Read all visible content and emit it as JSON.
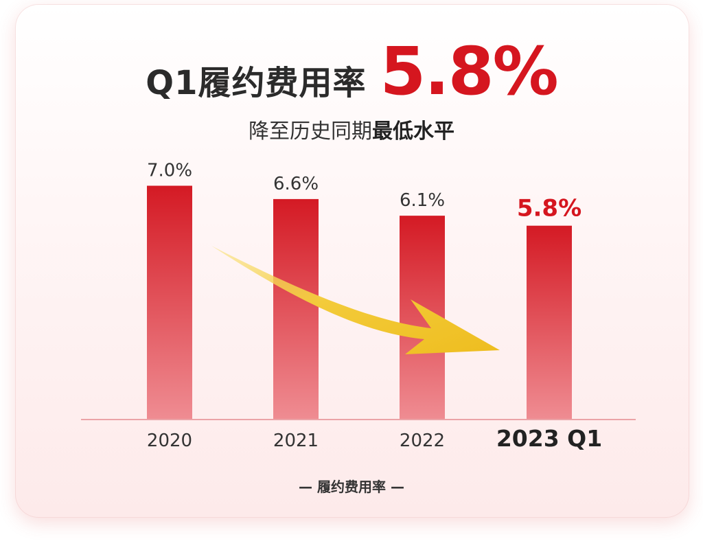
{
  "headline": {
    "prefix": "Q1履约费用率",
    "value": "5.8%"
  },
  "subtitle": {
    "normal": "降至历史同期",
    "bold": "最低水平"
  },
  "legend_caption": "— 履约费用率 —",
  "colors": {
    "accent": "#d5161f",
    "bar_top": "#d41a24",
    "bar_bottom": "#ef8c92",
    "arrow": "#f2c531",
    "baseline": "#e58a8f",
    "text": "#333333"
  },
  "chart_data": {
    "type": "bar",
    "categories": [
      "2020",
      "2021",
      "2022",
      "2023 Q1"
    ],
    "values": [
      7.0,
      6.6,
      6.1,
      5.8
    ],
    "value_labels": [
      "7.0%",
      "6.6%",
      "6.1%",
      "5.8%"
    ],
    "highlight_index": 3,
    "title": "Q1履约费用率 5.8%",
    "xlabel": "",
    "ylabel": "",
    "series": [
      {
        "name": "履约费用率",
        "values": [
          7.0,
          6.6,
          6.1,
          5.8
        ]
      }
    ],
    "annotation": "downward-trend-arrow",
    "grid": false,
    "legend_position": "bottom"
  }
}
